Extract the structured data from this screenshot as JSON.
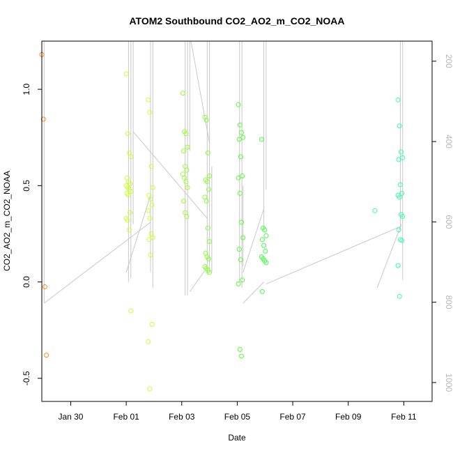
{
  "chart_data": {
    "type": "scatter",
    "title": "ATOM2 Southbound CO2_AO2_m_CO2_NOAA",
    "xlabel": "Date",
    "ylabel": "CO2_AO2_m_CO2_NOAA",
    "x_ticks": [
      {
        "date": "2017-01-30",
        "label": "Jan 30"
      },
      {
        "date": "2017-02-01",
        "label": "Feb 01"
      },
      {
        "date": "2017-02-03",
        "label": "Feb 03"
      },
      {
        "date": "2017-02-05",
        "label": "Feb 05"
      },
      {
        "date": "2017-02-07",
        "label": "Feb 07"
      },
      {
        "date": "2017-02-09",
        "label": "Feb 09"
      },
      {
        "date": "2017-02-11",
        "label": "Feb 11"
      }
    ],
    "xlim": [
      "2017-01-28T23:00",
      "2017-02-12T00:30"
    ],
    "y_ticks": [
      {
        "value": -0.5,
        "label": "-0.5"
      },
      {
        "value": 0.0,
        "label": "0.0"
      },
      {
        "value": 0.5,
        "label": "0.5"
      },
      {
        "value": 1.0,
        "label": "1.0"
      }
    ],
    "ylim": [
      -0.62,
      1.25
    ],
    "right_axis": {
      "ticks": [
        {
          "value": 200,
          "label": "200"
        },
        {
          "value": 400,
          "label": "400"
        },
        {
          "value": 600,
          "label": "600"
        },
        {
          "value": 800,
          "label": "800"
        },
        {
          "value": 1000,
          "label": "1000"
        }
      ],
      "range_top": 150,
      "range_bottom": 1047,
      "reversed": true,
      "color": "#b8b8b8"
    },
    "grid": false,
    "profile_color": "#c8c8c8",
    "groups": [
      {
        "color": "#ff8c1a",
        "x": "2017-01-29T01:00",
        "y": [
          1.18,
          0.845,
          -0.025,
          -0.38
        ]
      },
      {
        "color": "#ccff33",
        "x": "2017-02-01T02:00",
        "y": [
          1.08,
          0.77,
          0.67,
          0.65,
          0.54,
          0.52,
          0.51,
          0.5,
          0.49,
          0.48,
          0.47,
          0.46,
          0.45,
          0.36,
          0.33,
          0.32,
          0.27,
          -0.15
        ]
      },
      {
        "color": "#ccff33",
        "x": "2017-02-01T21:00",
        "y": [
          0.945,
          0.88,
          0.6,
          0.49,
          0.45,
          0.43,
          0.4,
          0.37,
          0.33,
          0.25,
          0.23,
          0.22,
          0.14,
          -0.22,
          -0.31,
          -0.555
        ]
      },
      {
        "color": "#99ff33",
        "x": "2017-02-03T03:00",
        "y": [
          0.98,
          0.78,
          0.77,
          0.7,
          0.68,
          0.6,
          0.58,
          0.56,
          0.54,
          0.52,
          0.49,
          0.42,
          0.36,
          0.34
        ]
      },
      {
        "color": "#88ff33",
        "x": "2017-02-03T22:00",
        "y": [
          0.855,
          0.84,
          0.67,
          0.55,
          0.53,
          0.52,
          0.48,
          0.44,
          0.42,
          0.28,
          0.21,
          0.15,
          0.13,
          0.12,
          0.08,
          0.07,
          0.06,
          0.05
        ]
      },
      {
        "color": "#55ff33",
        "x": "2017-02-05T03:00",
        "y": [
          0.92,
          0.815,
          0.775,
          0.75,
          0.74,
          0.65,
          0.55,
          0.54,
          0.46,
          0.31,
          0.23,
          0.17,
          0.115,
          0.01,
          -0.01,
          -0.35,
          -0.385
        ]
      },
      {
        "color": "#44ff44",
        "x": "2017-02-05T23:00",
        "y": [
          0.74,
          0.28,
          0.27,
          0.24,
          0.22,
          0.19,
          0.16,
          0.13,
          0.12,
          0.11,
          0.1,
          -0.05
        ]
      },
      {
        "color": "#33ff99",
        "x": "2017-02-10T01:00",
        "y": [
          0.37
        ]
      },
      {
        "color": "#33ffaa",
        "x": "2017-02-10T21:00",
        "y": [
          0.945,
          0.81,
          0.675,
          0.645,
          0.635,
          0.505,
          0.46,
          0.45,
          0.44,
          0.35,
          0.34,
          0.27,
          0.22,
          0.215,
          0.085,
          -0.075
        ]
      }
    ],
    "profile_segments": [
      {
        "x": [
          "2017-01-29T01:00",
          "2017-01-29T01:00"
        ],
        "y": [
          1.25,
          -0.11
        ]
      },
      {
        "x": [
          "2017-01-29T01:00",
          "2017-02-01T21:00"
        ],
        "y": [
          -0.11,
          0.31
        ]
      },
      {
        "x": [
          "2017-02-01T00:00",
          "2017-02-01T21:00"
        ],
        "y": [
          0.05,
          0.45
        ]
      },
      {
        "x": [
          "2017-02-01T02:00",
          "2017-02-01T02:00"
        ],
        "y": [
          1.25,
          0.0
        ]
      },
      {
        "x": [
          "2017-02-01T04:00",
          "2017-02-01T04:00"
        ],
        "y": [
          1.25,
          0.02
        ]
      },
      {
        "x": [
          "2017-02-01T06:00",
          "2017-02-01T06:00"
        ],
        "y": [
          1.25,
          0.3
        ]
      },
      {
        "x": [
          "2017-02-01T21:00",
          "2017-02-01T21:00"
        ],
        "y": [
          1.25,
          0.05
        ]
      },
      {
        "x": [
          "2017-02-01T23:00",
          "2017-02-01T23:00"
        ],
        "y": [
          1.25,
          -0.03
        ]
      },
      {
        "x": [
          "2017-02-01T06:00",
          "2017-02-03T22:00"
        ],
        "y": [
          0.78,
          0.33
        ]
      },
      {
        "x": [
          "2017-02-03T03:00",
          "2017-02-03T03:00"
        ],
        "y": [
          1.25,
          -0.07
        ]
      },
      {
        "x": [
          "2017-02-03T05:00",
          "2017-02-03T05:00"
        ],
        "y": [
          1.25,
          -0.07
        ]
      },
      {
        "x": [
          "2017-02-03T07:00",
          "2017-02-03T07:00"
        ],
        "y": [
          1.25,
          0.68
        ]
      },
      {
        "x": [
          "2017-02-03T07:00",
          "2017-02-03T20:00"
        ],
        "y": [
          -0.05,
          0.06
        ]
      },
      {
        "x": [
          "2017-02-03T08:00",
          "2017-02-04T00:00"
        ],
        "y": [
          1.25,
          0.72
        ]
      },
      {
        "x": [
          "2017-02-03T22:00",
          "2017-02-03T22:00"
        ],
        "y": [
          1.25,
          0.04
        ]
      },
      {
        "x": [
          "2017-02-04T00:00",
          "2017-02-04T00:00"
        ],
        "y": [
          1.25,
          0.05
        ]
      },
      {
        "x": [
          "2017-02-04T02:00",
          "2017-02-04T02:00"
        ],
        "y": [
          0.6,
          0.05
        ]
      },
      {
        "x": [
          "2017-02-05T02:00",
          "2017-02-05T02:00"
        ],
        "y": [
          1.25,
          0.0
        ]
      },
      {
        "x": [
          "2017-02-05T04:00",
          "2017-02-05T04:00"
        ],
        "y": [
          1.25,
          -0.03
        ]
      },
      {
        "x": [
          "2017-02-05T05:00",
          "2017-02-05T05:00"
        ],
        "y": [
          0.5,
          0.08
        ]
      },
      {
        "x": [
          "2017-02-05T05:00",
          "2017-02-05T23:00"
        ],
        "y": [
          0.05,
          0.38
        ]
      },
      {
        "x": [
          "2017-02-05T05:00",
          "2017-02-05T23:00"
        ],
        "y": [
          -0.11,
          0.0
        ]
      },
      {
        "x": [
          "2017-02-05T23:00",
          "2017-02-05T23:00"
        ],
        "y": [
          1.25,
          0.27
        ]
      },
      {
        "x": [
          "2017-02-06T01:00",
          "2017-02-06T01:00"
        ],
        "y": [
          1.25,
          0.48
        ]
      },
      {
        "x": [
          "2017-02-06T01:00",
          "2017-02-10T22:00"
        ],
        "y": [
          -0.01,
          0.29
        ]
      },
      {
        "x": [
          "2017-02-10T01:00",
          "2017-02-10T22:00"
        ],
        "y": [
          -0.03,
          0.3
        ]
      },
      {
        "x": [
          "2017-02-10T21:00",
          "2017-02-10T21:00"
        ],
        "y": [
          1.25,
          0.27
        ]
      },
      {
        "x": [
          "2017-02-10T23:00",
          "2017-02-10T23:00"
        ],
        "y": [
          1.25,
          0.01
        ]
      }
    ]
  }
}
